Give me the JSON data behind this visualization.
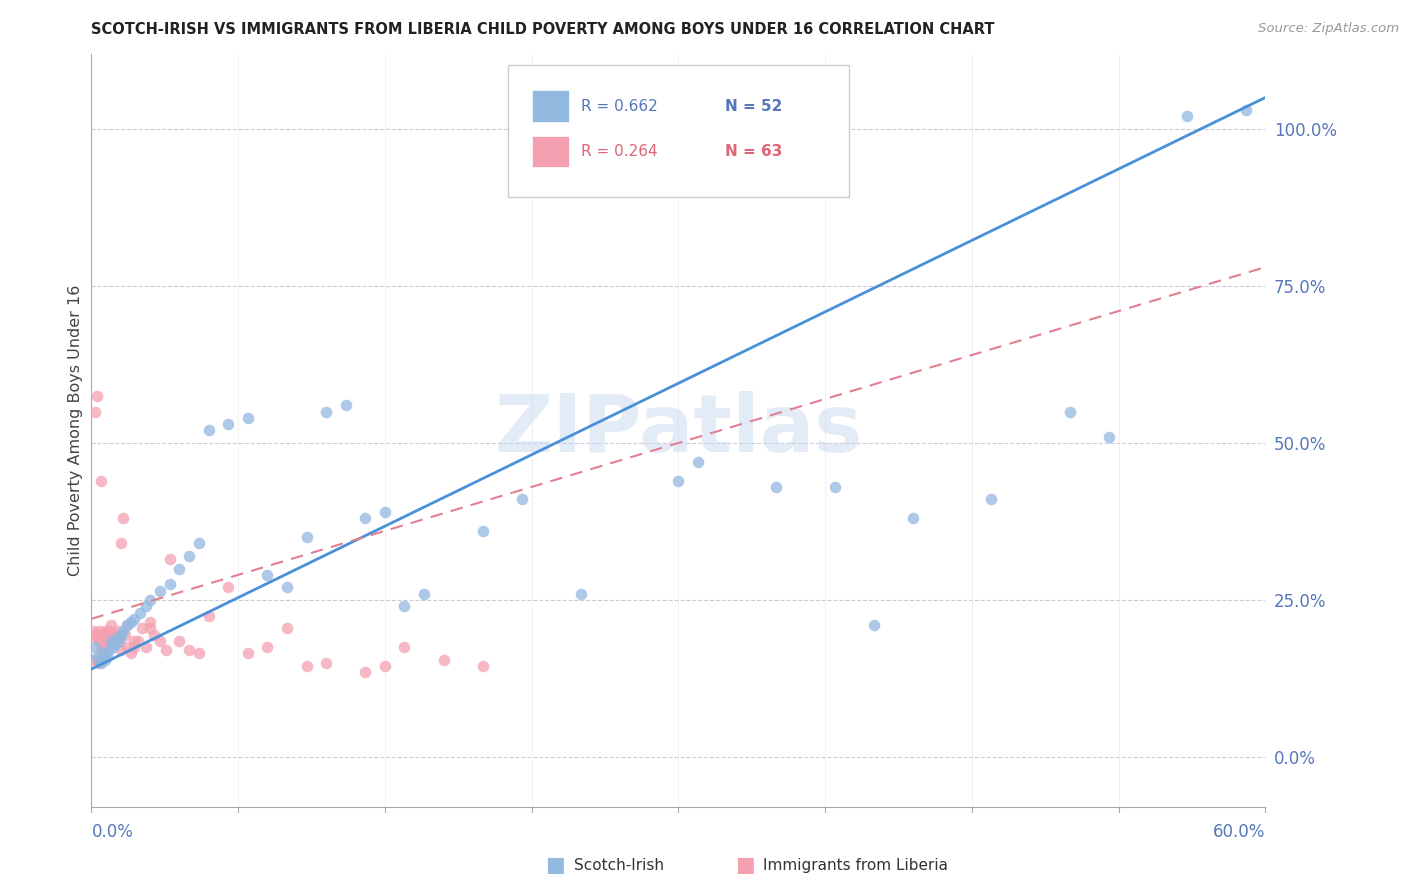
{
  "title": "SCOTCH-IRISH VS IMMIGRANTS FROM LIBERIA CHILD POVERTY AMONG BOYS UNDER 16 CORRELATION CHART",
  "source": "Source: ZipAtlas.com",
  "ylabel": "Child Poverty Among Boys Under 16",
  "xlim": [
    0.0,
    0.6
  ],
  "ylim": [
    -0.08,
    1.12
  ],
  "ytick_values": [
    0.0,
    0.25,
    0.5,
    0.75,
    1.0
  ],
  "ytick_labels": [
    "0.0%",
    "25.0%",
    "50.0%",
    "75.0%",
    "100.0%"
  ],
  "blue_color": "#92B8E0",
  "pink_color": "#F4A0B0",
  "line_blue_color": "#4A90D9",
  "line_pink_color": "#E08090",
  "watermark_color": "#C8D8F0",
  "title_color": "#222222",
  "source_color": "#999999",
  "tick_color": "#5577BB",
  "ylabel_color": "#444444",
  "legend_r1": "R = 0.662",
  "legend_n1": "N = 52",
  "legend_r2": "R = 0.264",
  "legend_n2": "N = 63",
  "blue_line_y0": 0.14,
  "blue_line_y1": 1.05,
  "pink_line_y0": 0.22,
  "pink_line_y1": 0.78,
  "pink_line_x1": 0.6,
  "scotch_irish_x": [
    0.002,
    0.003,
    0.004,
    0.005,
    0.006,
    0.007,
    0.008,
    0.009,
    0.01,
    0.011,
    0.012,
    0.013,
    0.014,
    0.015,
    0.016,
    0.018,
    0.02,
    0.022,
    0.025,
    0.028,
    0.03,
    0.035,
    0.04,
    0.045,
    0.05,
    0.055,
    0.06,
    0.07,
    0.08,
    0.09,
    0.1,
    0.11,
    0.12,
    0.13,
    0.14,
    0.15,
    0.16,
    0.17,
    0.2,
    0.22,
    0.25,
    0.3,
    0.31,
    0.35,
    0.38,
    0.4,
    0.42,
    0.46,
    0.5,
    0.52,
    0.56,
    0.59
  ],
  "scotch_irish_y": [
    0.175,
    0.16,
    0.155,
    0.15,
    0.165,
    0.155,
    0.16,
    0.17,
    0.185,
    0.175,
    0.18,
    0.19,
    0.185,
    0.195,
    0.2,
    0.21,
    0.215,
    0.22,
    0.23,
    0.24,
    0.25,
    0.265,
    0.275,
    0.3,
    0.32,
    0.34,
    0.52,
    0.53,
    0.54,
    0.29,
    0.27,
    0.35,
    0.55,
    0.56,
    0.38,
    0.39,
    0.24,
    0.26,
    0.36,
    0.41,
    0.26,
    0.44,
    0.47,
    0.43,
    0.43,
    0.21,
    0.38,
    0.41,
    0.55,
    0.51,
    1.02,
    1.03
  ],
  "liberia_x": [
    0.001,
    0.002,
    0.002,
    0.003,
    0.003,
    0.004,
    0.004,
    0.005,
    0.005,
    0.006,
    0.006,
    0.007,
    0.007,
    0.008,
    0.008,
    0.009,
    0.01,
    0.011,
    0.012,
    0.013,
    0.014,
    0.015,
    0.016,
    0.017,
    0.018,
    0.02,
    0.022,
    0.024,
    0.026,
    0.028,
    0.03,
    0.032,
    0.035,
    0.038,
    0.04,
    0.045,
    0.05,
    0.055,
    0.06,
    0.07,
    0.08,
    0.09,
    0.1,
    0.11,
    0.12,
    0.14,
    0.15,
    0.16,
    0.18,
    0.2,
    0.002,
    0.003,
    0.004,
    0.005,
    0.006,
    0.007,
    0.008,
    0.01,
    0.012,
    0.015,
    0.018,
    0.022,
    0.03
  ],
  "liberia_y": [
    0.2,
    0.195,
    0.55,
    0.19,
    0.575,
    0.185,
    0.2,
    0.18,
    0.44,
    0.185,
    0.195,
    0.195,
    0.2,
    0.185,
    0.195,
    0.2,
    0.21,
    0.185,
    0.195,
    0.2,
    0.185,
    0.34,
    0.38,
    0.195,
    0.21,
    0.165,
    0.175,
    0.185,
    0.205,
    0.175,
    0.215,
    0.195,
    0.185,
    0.17,
    0.315,
    0.185,
    0.17,
    0.165,
    0.225,
    0.27,
    0.165,
    0.175,
    0.205,
    0.145,
    0.15,
    0.135,
    0.145,
    0.175,
    0.155,
    0.145,
    0.155,
    0.155,
    0.15,
    0.17,
    0.165,
    0.16,
    0.185,
    0.18,
    0.185,
    0.17,
    0.175,
    0.185,
    0.205
  ]
}
